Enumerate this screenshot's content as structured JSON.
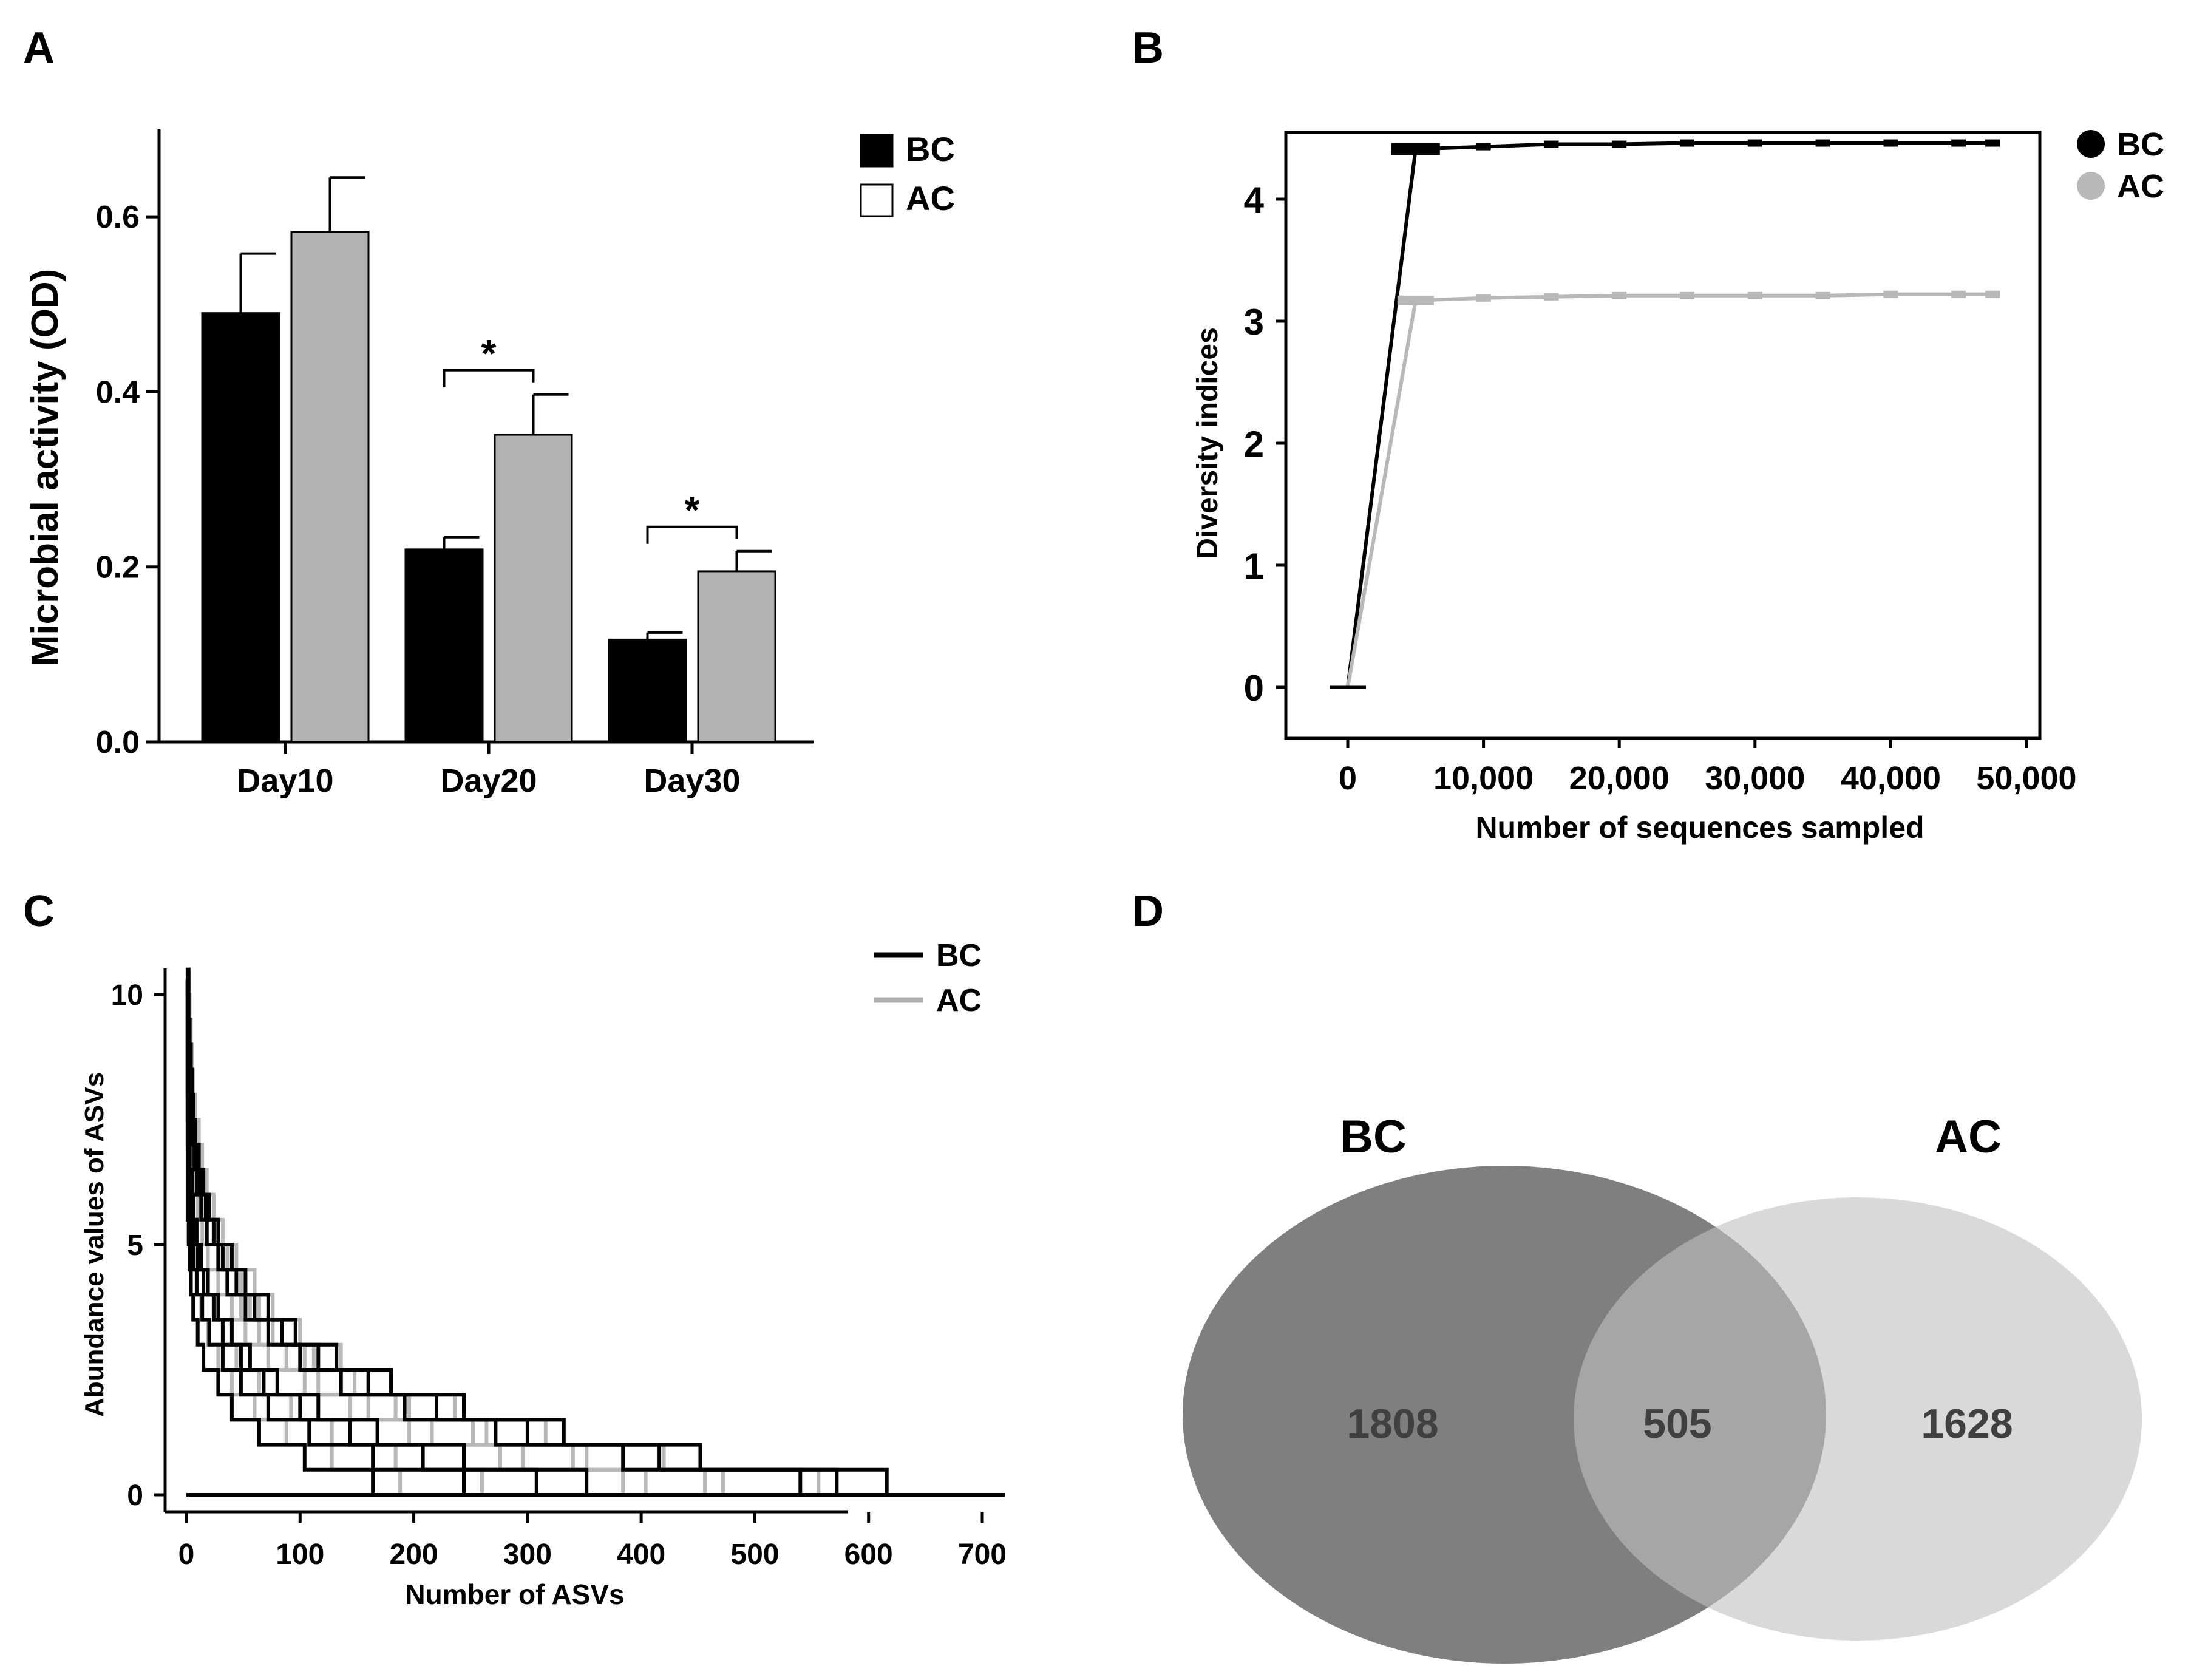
{
  "panels": {
    "A": {
      "letter": "A",
      "legend": [
        {
          "label": "BC",
          "fill": "#000000"
        },
        {
          "label": "AC",
          "fill": "#ffffff"
        }
      ],
      "significance_mark": "*"
    },
    "B": {
      "letter": "B",
      "legend": [
        {
          "label": "BC",
          "color": "#000000"
        },
        {
          "label": "AC",
          "color": "#b8b8b8"
        }
      ]
    },
    "C": {
      "letter": "C",
      "legend": [
        {
          "label": "BC",
          "color": "#000000"
        },
        {
          "label": "AC",
          "color": "#b0b0b0"
        }
      ]
    },
    "D": {
      "letter": "D"
    }
  },
  "colors": {
    "bc": "#000000",
    "ac_bar": "#b3b3b3",
    "ac_line": "#b8b8b8",
    "venn_bc": "#5a5a5a",
    "venn_ac": "#d5d5d5",
    "venn_text": "#404040"
  },
  "chart_data": [
    {
      "id": "A",
      "type": "bar",
      "ylabel": "Microbial activity (OD)",
      "xlabel": "",
      "categories": [
        "Day10",
        "Day20",
        "Day30"
      ],
      "ylim": [
        0,
        0.7
      ],
      "yticks": [
        0.0,
        0.2,
        0.4,
        0.6
      ],
      "ytick_labels": [
        "0.0",
        "0.2",
        "0.4",
        "0.6"
      ],
      "series": [
        {
          "name": "BC",
          "values": [
            0.49,
            0.22,
            0.117
          ],
          "errors": [
            0.068,
            0.014,
            0.008
          ]
        },
        {
          "name": "AC",
          "values": [
            0.583,
            0.351,
            0.195
          ],
          "errors": [
            0.062,
            0.046,
            0.023
          ]
        }
      ],
      "significance": [
        {
          "category": "Day20",
          "label": "*"
        },
        {
          "category": "Day30",
          "label": "*"
        }
      ]
    },
    {
      "id": "B",
      "type": "line",
      "xlabel": "Number of sequences sampled",
      "ylabel": "Diversity indices",
      "xlim": [
        -5000,
        52000
      ],
      "ylim": [
        -0.45,
        4.9
      ],
      "xticks": [
        0,
        10000,
        20000,
        30000,
        40000,
        50000
      ],
      "xtick_labels": [
        "0",
        "10,000",
        "20,000",
        "30,000",
        "40,000",
        "50,000"
      ],
      "yticks": [
        0,
        1,
        2,
        3,
        4
      ],
      "ytick_labels": [
        "0",
        "1",
        "2",
        "3",
        "4"
      ],
      "series": [
        {
          "name": "BC",
          "x": [
            0,
            5000,
            10000,
            15000,
            20000,
            25000,
            30000,
            35000,
            40000,
            45000,
            47500
          ],
          "y": [
            0,
            4.41,
            4.43,
            4.45,
            4.45,
            4.46,
            4.46,
            4.46,
            4.46,
            4.46,
            4.46
          ]
        },
        {
          "name": "AC",
          "x": [
            0,
            5000,
            10000,
            15000,
            20000,
            25000,
            30000,
            35000,
            40000,
            45000,
            47500
          ],
          "y": [
            0,
            3.17,
            3.19,
            3.2,
            3.21,
            3.21,
            3.21,
            3.21,
            3.22,
            3.22,
            3.22
          ]
        }
      ]
    },
    {
      "id": "C",
      "type": "line",
      "xlabel": "Number of ASVs",
      "ylabel": "Abundance values of ASVs",
      "xlim": [
        -20,
        725
      ],
      "ylim": [
        -0.3,
        10.6
      ],
      "xticks": [
        0,
        100,
        200,
        300,
        400,
        500,
        600,
        700
      ],
      "xtick_labels": [
        "0",
        "100",
        "200",
        "300",
        "400",
        "500",
        "600",
        "700"
      ],
      "yticks": [
        0,
        5,
        10
      ],
      "ytick_labels": [
        "0",
        "5",
        "10"
      ],
      "curve_model": "abundance = k*ln(Nmax/x), stepped, ending at 0 at Nmax",
      "series": [
        {
          "name": "BC",
          "curves": [
            {
              "k": 1.05,
              "n_max": 205
            },
            {
              "k": 1.2,
              "n_max": 300
            },
            {
              "k": 1.3,
              "n_max": 370
            },
            {
              "k": 1.35,
              "n_max": 420
            },
            {
              "k": 1.45,
              "n_max": 640
            },
            {
              "k": 1.55,
              "n_max": 670
            },
            {
              "k": 1.6,
              "n_max": 720
            }
          ]
        },
        {
          "name": "AC",
          "curves": [
            {
              "k": 1.3,
              "n_max": 225
            },
            {
              "k": 1.4,
              "n_max": 310
            },
            {
              "k": 1.5,
              "n_max": 450
            },
            {
              "k": 1.6,
              "n_max": 470
            },
            {
              "k": 1.65,
              "n_max": 530
            },
            {
              "k": 1.7,
              "n_max": 545
            },
            {
              "k": 1.75,
              "n_max": 640
            }
          ]
        }
      ]
    },
    {
      "id": "D",
      "type": "venn",
      "sets": [
        {
          "name": "BC",
          "only": "1808"
        },
        {
          "name": "AC",
          "only": "1628"
        }
      ],
      "intersection": "505"
    }
  ]
}
